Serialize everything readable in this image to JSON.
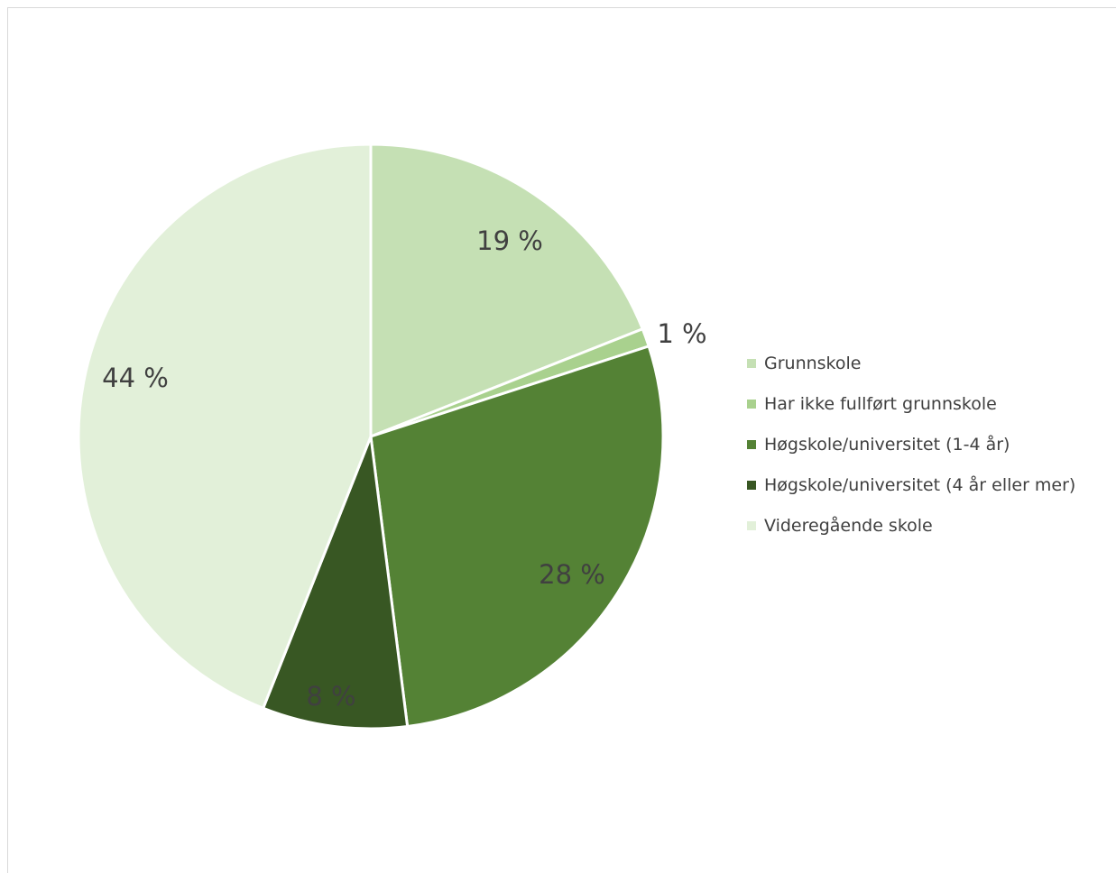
{
  "chart_data": {
    "type": "pie",
    "categories": [
      "Grunnskole",
      "Har ikke fullført grunnskole",
      "Høgskole/universitet (1-4 år)",
      "Høgskole/universitet (4 år eller mer)",
      "Videregående skole"
    ],
    "values": [
      19,
      1,
      28,
      8,
      44
    ],
    "data_labels": [
      "19 %",
      "1 %",
      "28 %",
      "8 %",
      "44 %"
    ],
    "colors": [
      "#c5e0b4",
      "#a9d18e",
      "#548235",
      "#385723",
      "#e2f0d9"
    ],
    "title": "",
    "legend_position": "right"
  }
}
